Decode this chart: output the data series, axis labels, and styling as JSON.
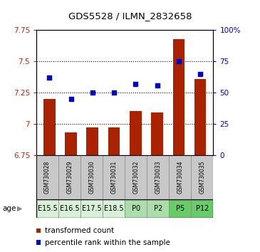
{
  "title": "GDS5528 / ILMN_2832658",
  "samples": [
    "GSM730028",
    "GSM730029",
    "GSM730030",
    "GSM730031",
    "GSM730032",
    "GSM730033",
    "GSM730034",
    "GSM730035"
  ],
  "age_labels": [
    "E15.5",
    "E16.5",
    "E17.5",
    "E18.5",
    "P0",
    "P2",
    "P5",
    "P12"
  ],
  "sample_colors": [
    "#c8c8c8",
    "#c8c8c8",
    "#c8c8c8",
    "#c8c8c8",
    "#c8c8c8",
    "#c8c8c8",
    "#c8c8c8",
    "#c8c8c8"
  ],
  "age_colors": [
    "#d8f0d8",
    "#d8f0d8",
    "#d8f0d8",
    "#d8f0d8",
    "#aaddaa",
    "#aaddaa",
    "#66cc66",
    "#66cc66"
  ],
  "red_values": [
    7.2,
    6.93,
    6.97,
    6.97,
    7.1,
    7.09,
    7.68,
    7.36
  ],
  "blue_values": [
    62,
    45,
    50,
    50,
    57,
    56,
    75,
    65
  ],
  "ylim_left": [
    6.75,
    7.75
  ],
  "ylim_right": [
    0,
    100
  ],
  "yticks_left": [
    6.75,
    7.0,
    7.25,
    7.5,
    7.75
  ],
  "ytick_labels_left": [
    "6.75",
    "7",
    "7.25",
    "7.5",
    "7.75"
  ],
  "yticks_right": [
    0,
    25,
    50,
    75,
    100
  ],
  "ytick_labels_right": [
    "0",
    "25",
    "50",
    "75",
    "100%"
  ],
  "bar_color": "#aa2200",
  "dot_color": "#0000cc",
  "bar_width": 0.55,
  "bg_color": "#ffffff",
  "legend_red_label": "transformed count",
  "legend_blue_label": "percentile rank within the sample",
  "age_row_label": "age"
}
